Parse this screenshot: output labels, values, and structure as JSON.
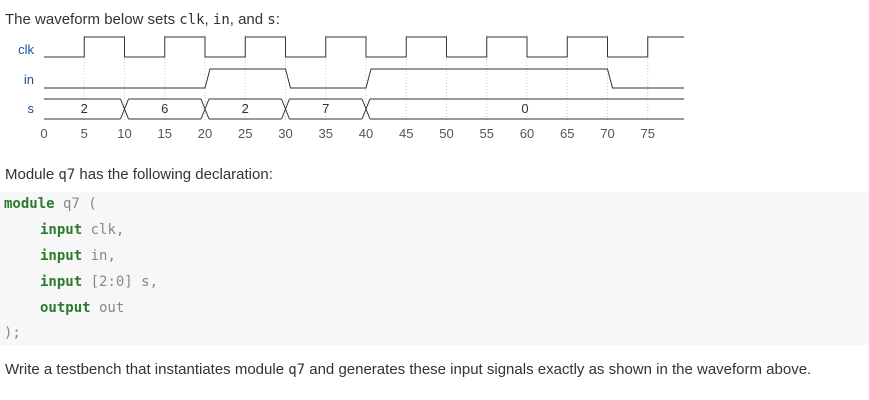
{
  "intro": {
    "pre": "The waveform below sets ",
    "sig1": "clk",
    "sep1": ", ",
    "sig2": "in",
    "sep2": ", and ",
    "sig3": "s",
    "post": ":"
  },
  "waveform": {
    "time_ticks": [
      0,
      5,
      10,
      15,
      20,
      25,
      30,
      35,
      40,
      45,
      50,
      55,
      60,
      65,
      70,
      75
    ],
    "time_end": 80,
    "signals": [
      {
        "name": "clk",
        "type": "bit",
        "transitions": [
          [
            0,
            0
          ],
          [
            5,
            1
          ],
          [
            10,
            0
          ],
          [
            15,
            1
          ],
          [
            20,
            0
          ],
          [
            25,
            1
          ],
          [
            30,
            0
          ],
          [
            35,
            1
          ],
          [
            40,
            0
          ],
          [
            45,
            1
          ],
          [
            50,
            0
          ],
          [
            55,
            1
          ],
          [
            60,
            0
          ],
          [
            65,
            1
          ],
          [
            70,
            0
          ],
          [
            75,
            1
          ]
        ]
      },
      {
        "name": "in",
        "type": "bit",
        "transitions": [
          [
            0,
            0
          ],
          [
            20,
            1
          ],
          [
            30,
            0
          ],
          [
            40,
            1
          ],
          [
            70,
            0
          ]
        ]
      },
      {
        "name": "s",
        "type": "bus",
        "segments": [
          {
            "t0": 0,
            "t1": 10,
            "label": "2"
          },
          {
            "t0": 10,
            "t1": 20,
            "label": "6"
          },
          {
            "t0": 20,
            "t1": 30,
            "label": "2"
          },
          {
            "t0": 30,
            "t1": 40,
            "label": "7"
          },
          {
            "t0": 40,
            "t1": 80,
            "label": "0"
          }
        ]
      }
    ],
    "colors": {
      "name": "#1a4fa0",
      "wave": "#333333",
      "grid": "#cccccc",
      "tick": "#555555"
    }
  },
  "decl": {
    "pre": "Module ",
    "mod": "q7",
    "post": " has the following declaration:"
  },
  "code": {
    "l1_kw": "module",
    "l1_rest": " q7 (",
    "l2_kw": "input",
    "l2_rest": " clk,",
    "l3_kw": "input",
    "l3_rest": " in,",
    "l4_kw": "input",
    "l4_rest": " [2:0] s,",
    "l5_kw": "output",
    "l5_rest": " out",
    "l6": ");"
  },
  "outro": {
    "pre": "Write a testbench that instantiates module ",
    "mod": "q7",
    "post": " and generates these input signals exactly as shown in the waveform above."
  }
}
